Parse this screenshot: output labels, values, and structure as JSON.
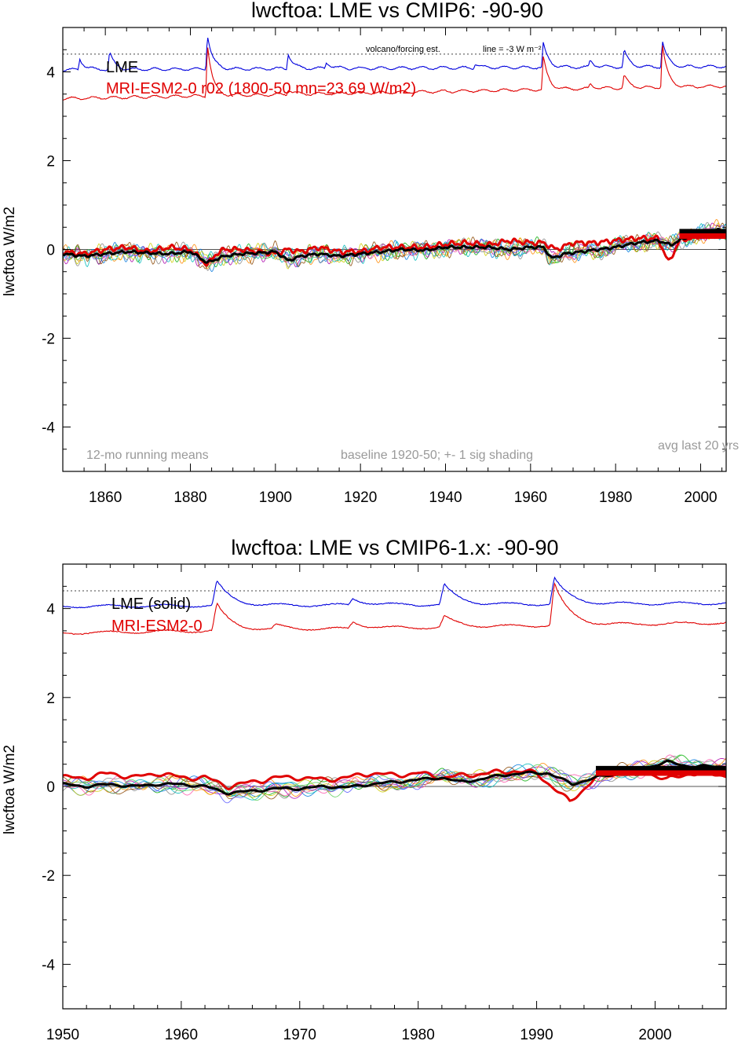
{
  "chart_data": [
    {
      "type": "line",
      "title": "lwcftoa: LME vs CMIP6: -90-90",
      "ylabel": "lwcftoa W/m2",
      "xlim": [
        1850,
        2006
      ],
      "ylim": [
        -5,
        5
      ],
      "x_ticks": [
        1860,
        1880,
        1900,
        1920,
        1940,
        1960,
        1980,
        2000
      ],
      "y_ticks": [
        -4,
        -2,
        0,
        2,
        4
      ],
      "grid": false,
      "reference_line": {
        "y": 4.4,
        "style": "dotted",
        "label": "volcano/forcing est.",
        "label2": "line = -3 W m⁻²"
      },
      "legend": [
        {
          "text": "LME",
          "color": "#000000"
        },
        {
          "text": "MRI-ESM2-0  r02 (1800-50 mn=23.69 W/m2)",
          "color": "#e00000"
        }
      ],
      "annotations": {
        "left": "12-mo running means",
        "middle": "baseline 1920-50; +- 1 sig shading",
        "right": "avg last 20 yrs"
      },
      "forcing_blue": {
        "color": "#0000dd",
        "base": 4.05,
        "end": 4.12,
        "peaks": [
          [
            1854,
            0.25
          ],
          [
            1861,
            0.4
          ],
          [
            1884,
            0.8
          ],
          [
            1903,
            0.35
          ],
          [
            1912,
            0.15
          ],
          [
            1947,
            0.1
          ],
          [
            1963,
            0.55
          ],
          [
            1974,
            0.15
          ],
          [
            1982,
            0.4
          ],
          [
            1991,
            0.6
          ]
        ]
      },
      "forcing_red": {
        "color": "#e00000",
        "base": 3.4,
        "end": 3.68,
        "peaks": [
          [
            1884,
            1.2
          ],
          [
            1903,
            0.12
          ],
          [
            1963,
            0.75
          ],
          [
            1974,
            0.1
          ],
          [
            1982,
            0.3
          ],
          [
            1991,
            1.0
          ]
        ]
      },
      "lme_mean": {
        "color": "#000000",
        "points": [
          [
            1850,
            -0.1
          ],
          [
            1855,
            -0.15
          ],
          [
            1860,
            -0.1
          ],
          [
            1865,
            -0.05
          ],
          [
            1870,
            -0.08
          ],
          [
            1875,
            -0.1
          ],
          [
            1880,
            -0.05
          ],
          [
            1884,
            -0.3
          ],
          [
            1888,
            -0.15
          ],
          [
            1892,
            -0.1
          ],
          [
            1896,
            -0.08
          ],
          [
            1900,
            -0.05
          ],
          [
            1903,
            -0.25
          ],
          [
            1906,
            -0.15
          ],
          [
            1910,
            -0.1
          ],
          [
            1915,
            -0.15
          ],
          [
            1920,
            -0.1
          ],
          [
            1925,
            -0.05
          ],
          [
            1930,
            0.0
          ],
          [
            1935,
            -0.02
          ],
          [
            1940,
            0.05
          ],
          [
            1945,
            0.05
          ],
          [
            1950,
            0.05
          ],
          [
            1955,
            0.0
          ],
          [
            1960,
            0.05
          ],
          [
            1963,
            0.05
          ],
          [
            1965,
            -0.2
          ],
          [
            1968,
            -0.1
          ],
          [
            1972,
            -0.05
          ],
          [
            1976,
            0.0
          ],
          [
            1980,
            0.05
          ],
          [
            1985,
            0.15
          ],
          [
            1990,
            0.2
          ],
          [
            1993,
            0.1
          ],
          [
            1996,
            0.25
          ],
          [
            2000,
            0.35
          ],
          [
            2003,
            0.45
          ],
          [
            2006,
            0.4
          ]
        ]
      },
      "model": {
        "color": "#e00000",
        "points": [
          [
            1850,
            -0.05
          ],
          [
            1855,
            -0.1
          ],
          [
            1860,
            0.0
          ],
          [
            1865,
            0.05
          ],
          [
            1870,
            -0.05
          ],
          [
            1875,
            0.05
          ],
          [
            1880,
            0.0
          ],
          [
            1884,
            -0.35
          ],
          [
            1886,
            -0.1
          ],
          [
            1888,
            0.0
          ],
          [
            1892,
            0.0
          ],
          [
            1896,
            -0.05
          ],
          [
            1900,
            -0.1
          ],
          [
            1903,
            0.0
          ],
          [
            1906,
            -0.05
          ],
          [
            1910,
            0.05
          ],
          [
            1915,
            -0.05
          ],
          [
            1920,
            -0.05
          ],
          [
            1925,
            0.05
          ],
          [
            1930,
            0.05
          ],
          [
            1935,
            0.05
          ],
          [
            1940,
            0.12
          ],
          [
            1945,
            0.15
          ],
          [
            1950,
            0.1
          ],
          [
            1955,
            0.2
          ],
          [
            1960,
            0.15
          ],
          [
            1963,
            0.15
          ],
          [
            1966,
            0.0
          ],
          [
            1970,
            0.15
          ],
          [
            1975,
            0.15
          ],
          [
            1980,
            0.2
          ],
          [
            1985,
            0.25
          ],
          [
            1990,
            0.25
          ],
          [
            1992.5,
            -0.3
          ],
          [
            1995,
            0.2
          ],
          [
            2000,
            0.3
          ],
          [
            2006,
            0.3
          ]
        ]
      },
      "avg_bars": [
        {
          "x": [
            1995,
            2006
          ],
          "y": 0.4,
          "color": "#000000"
        },
        {
          "x": [
            1995,
            2006
          ],
          "y": 0.3,
          "color": "#e00000"
        }
      ],
      "ensemble_colors": [
        "#00aa00",
        "#aa00aa",
        "#0077dd",
        "#cccc00",
        "#888888",
        "#ff8800",
        "#00bbbb",
        "#884400",
        "#ff55aa",
        "#5555ff",
        "#55cc55"
      ]
    },
    {
      "type": "line",
      "title": "lwcftoa: LME vs CMIP6-1.x: -90-90",
      "ylabel": "lwcftoa W/m2",
      "xlim": [
        1950,
        2006
      ],
      "ylim": [
        -5,
        5
      ],
      "x_ticks": [
        1950,
        1960,
        1970,
        1980,
        1990,
        2000
      ],
      "y_ticks": [
        -4,
        -2,
        0,
        2,
        4
      ],
      "grid": false,
      "reference_line": {
        "y": 4.4,
        "style": "dotted"
      },
      "legend": [
        {
          "text": "LME (solid)",
          "color": "#000000"
        },
        {
          "text": "MRI-ESM2-0",
          "color": "#e00000"
        }
      ],
      "forcing_blue": {
        "color": "#0000dd",
        "base": 4.05,
        "end": 4.12,
        "peaks": [
          [
            1963,
            0.55
          ],
          [
            1974.5,
            0.15
          ],
          [
            1982.2,
            0.45
          ],
          [
            1991.5,
            0.6
          ]
        ]
      },
      "forcing_red": {
        "color": "#e00000",
        "base": 3.45,
        "end": 3.68,
        "peaks": [
          [
            1963,
            0.6
          ],
          [
            1968,
            0.1
          ],
          [
            1974.5,
            0.15
          ],
          [
            1982.2,
            0.25
          ],
          [
            1991.5,
            0.95
          ]
        ]
      },
      "lme_mean": {
        "color": "#000000",
        "points": [
          [
            1950,
            0.05
          ],
          [
            1952,
            0.0
          ],
          [
            1954,
            0.05
          ],
          [
            1956,
            0.0
          ],
          [
            1958,
            0.05
          ],
          [
            1960,
            0.05
          ],
          [
            1962,
            0.0
          ],
          [
            1964,
            -0.15
          ],
          [
            1966,
            -0.1
          ],
          [
            1968,
            -0.05
          ],
          [
            1970,
            -0.05
          ],
          [
            1972,
            0.0
          ],
          [
            1974,
            -0.02
          ],
          [
            1976,
            0.05
          ],
          [
            1978,
            0.1
          ],
          [
            1980,
            0.15
          ],
          [
            1982,
            0.2
          ],
          [
            1983.5,
            0.1
          ],
          [
            1985,
            0.15
          ],
          [
            1987,
            0.25
          ],
          [
            1989,
            0.3
          ],
          [
            1991,
            0.3
          ],
          [
            1993,
            0.05
          ],
          [
            1995,
            0.2
          ],
          [
            1997,
            0.3
          ],
          [
            1999,
            0.4
          ],
          [
            2001,
            0.55
          ],
          [
            2003,
            0.45
          ],
          [
            2006,
            0.45
          ]
        ]
      },
      "model": {
        "color": "#e00000",
        "points": [
          [
            1950,
            0.2
          ],
          [
            1952,
            0.2
          ],
          [
            1954,
            0.3
          ],
          [
            1956,
            0.2
          ],
          [
            1958,
            0.3
          ],
          [
            1960,
            0.2
          ],
          [
            1962,
            0.2
          ],
          [
            1964,
            0.0
          ],
          [
            1966,
            0.1
          ],
          [
            1968,
            0.2
          ],
          [
            1970,
            0.2
          ],
          [
            1972,
            0.15
          ],
          [
            1974,
            0.2
          ],
          [
            1976,
            0.3
          ],
          [
            1978,
            0.25
          ],
          [
            1980,
            0.3
          ],
          [
            1982,
            0.2
          ],
          [
            1984,
            0.25
          ],
          [
            1986,
            0.3
          ],
          [
            1988,
            0.35
          ],
          [
            1990,
            0.3
          ],
          [
            1992.8,
            -0.35
          ],
          [
            1995,
            0.2
          ],
          [
            1997,
            0.3
          ],
          [
            1999,
            0.35
          ],
          [
            2001,
            0.15
          ],
          [
            2003,
            0.3
          ],
          [
            2006,
            0.25
          ]
        ]
      },
      "avg_bars": [
        {
          "x": [
            1995,
            2006
          ],
          "y": 0.4,
          "color": "#000000"
        },
        {
          "x": [
            1995,
            2006
          ],
          "y": 0.3,
          "color": "#e00000"
        }
      ],
      "ensemble_colors": [
        "#00aa00",
        "#aa00aa",
        "#0077dd",
        "#cccc00",
        "#888888",
        "#ff8800",
        "#00bbbb",
        "#884400",
        "#ff55aa",
        "#5555ff",
        "#55cc55"
      ]
    }
  ]
}
